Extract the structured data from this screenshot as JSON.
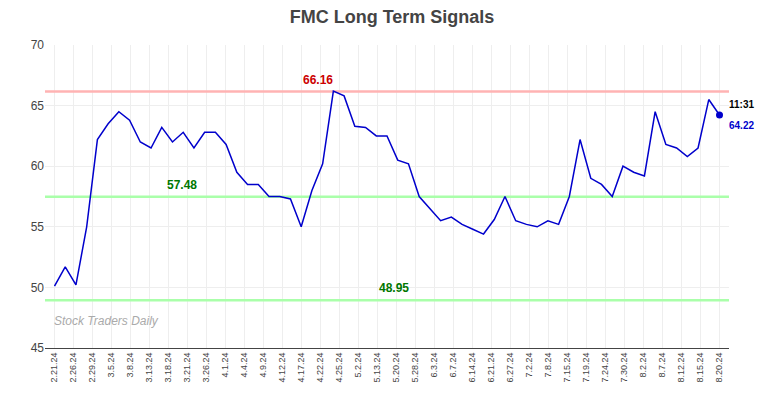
{
  "chart_data": {
    "type": "line",
    "title": "FMC Long Term Signals",
    "x": [
      0,
      0.564516,
      1.129032,
      1.693548,
      2.258065,
      2.822581,
      3.387097,
      3.951613,
      4.516129,
      5.080645,
      5.645161,
      6.209677,
      6.774194,
      7.33871,
      7.903226,
      8.467742,
      9.032258,
      9.596774,
      10.16129,
      10.725806,
      11.290323,
      11.854839,
      12.419355,
      12.983871,
      13.548387,
      14.112903,
      14.677419,
      15.241935,
      15.806452,
      16.370968,
      16.935484,
      17.5,
      18.064516,
      18.629032,
      19.193548,
      19.758065,
      20.322581,
      20.887097,
      21.451613,
      22.016129,
      22.580645,
      23.145161,
      23.709677,
      24.274194,
      24.83871,
      25.403226,
      25.967742,
      26.532258,
      27.096774,
      27.66129,
      28.225806,
      28.790323,
      29.354839,
      29.919355,
      30.483871,
      31.048387,
      31.612903,
      32.177419,
      32.741935,
      33.306452,
      33.870968,
      34.435484,
      35
    ],
    "values": [
      50.1,
      51.7,
      50.2,
      55.0,
      62.2,
      63.5,
      64.5,
      63.8,
      62.0,
      61.5,
      63.2,
      62.0,
      62.8,
      61.5,
      62.8,
      62.8,
      61.8,
      59.5,
      58.5,
      58.5,
      57.5,
      57.5,
      57.3,
      55.0,
      58.0,
      60.2,
      66.2,
      65.8,
      63.3,
      63.2,
      62.5,
      62.5,
      60.5,
      60.2,
      57.5,
      56.5,
      55.5,
      55.8,
      55.2,
      54.8,
      54.4,
      55.6,
      57.5,
      55.5,
      55.2,
      55.0,
      55.5,
      55.2,
      57.5,
      62.2,
      59.0,
      58.5,
      57.5,
      60.0,
      59.5,
      59.2,
      64.5,
      61.8,
      61.5,
      60.8,
      61.5,
      65.5,
      64.22
    ],
    "color": "#0000cc",
    "xlim": [
      -0.5,
      35.5
    ],
    "xticks": [
      {
        "value": 0,
        "label": "2.21.24"
      },
      {
        "value": 1,
        "label": "2.26.24"
      },
      {
        "value": 2,
        "label": "2.29.24"
      },
      {
        "value": 3,
        "label": "3.5.24"
      },
      {
        "value": 4,
        "label": "3.8.24"
      },
      {
        "value": 5,
        "label": "3.13.24"
      },
      {
        "value": 6,
        "label": "3.18.24"
      },
      {
        "value": 7,
        "label": "3.21.24"
      },
      {
        "value": 8,
        "label": "3.26.24"
      },
      {
        "value": 9,
        "label": "4.1.24"
      },
      {
        "value": 10,
        "label": "4.4.24"
      },
      {
        "value": 11,
        "label": "4.9.24"
      },
      {
        "value": 12,
        "label": "4.12.24"
      },
      {
        "value": 13,
        "label": "4.17.24"
      },
      {
        "value": 14,
        "label": "4.22.24"
      },
      {
        "value": 15,
        "label": "4.25.24"
      },
      {
        "value": 16,
        "label": "5.2.24"
      },
      {
        "value": 17,
        "label": "5.13.24"
      },
      {
        "value": 18,
        "label": "5.20.24"
      },
      {
        "value": 19,
        "label": "5.28.24"
      },
      {
        "value": 20,
        "label": "6.3.24"
      },
      {
        "value": 21,
        "label": "6.7.24"
      },
      {
        "value": 22,
        "label": "6.14.24"
      },
      {
        "value": 23,
        "label": "6.21.24"
      },
      {
        "value": 24,
        "label": "6.27.24"
      },
      {
        "value": 25,
        "label": "7.2.24"
      },
      {
        "value": 26,
        "label": "7.8.24"
      },
      {
        "value": 27,
        "label": "7.15.24"
      },
      {
        "value": 28,
        "label": "7.19.24"
      },
      {
        "value": 29,
        "label": "7.24.24"
      },
      {
        "value": 30,
        "label": "7.30.24"
      },
      {
        "value": 31,
        "label": "8.2.24"
      },
      {
        "value": 32,
        "label": "8.7.24"
      },
      {
        "value": 33,
        "label": "8.12.24"
      },
      {
        "value": 34,
        "label": "8.15.24"
      },
      {
        "value": 35,
        "label": "8.20.24"
      }
    ],
    "ylim": [
      45,
      70
    ],
    "yticks": [
      45,
      50,
      55,
      60,
      65,
      70
    ],
    "grid": true,
    "reference_lines": [
      {
        "value": 66.16,
        "color": "#ffb3b3",
        "label": "66.16",
        "label_color": "#cc0000"
      },
      {
        "value": 57.48,
        "color": "#aaffaa",
        "label": "57.48",
        "label_color": "#007700"
      },
      {
        "value": 48.95,
        "color": "#aaffaa",
        "label": "48.95",
        "label_color": "#007700"
      }
    ],
    "last_point": {
      "time": "11:31",
      "time_color": "#000000",
      "price": 64.22,
      "price_color": "#0000cc"
    },
    "watermark": {
      "text": "Stock Traders Daily",
      "color": "#aaaaaa"
    }
  }
}
